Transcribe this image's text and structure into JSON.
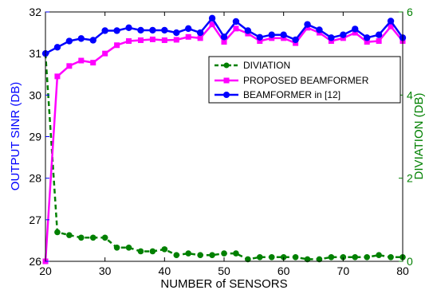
{
  "chart_data": {
    "type": "line",
    "title": "",
    "xlabel": "NUMBER of SENSORS",
    "ylabel": "OUTPUT SINR (DB)",
    "y2label": "DIVIATION (DB)",
    "xlim": [
      20,
      80
    ],
    "ylim": [
      26,
      32
    ],
    "y2lim": [
      0,
      6
    ],
    "x_ticks": [
      20,
      30,
      40,
      50,
      60,
      70,
      80
    ],
    "y_ticks": [
      26,
      27,
      28,
      29,
      30,
      31,
      32
    ],
    "y2_ticks": [
      0,
      2,
      4,
      6
    ],
    "grid": false,
    "legend_position": "right",
    "x": [
      20,
      22,
      24,
      26,
      28,
      30,
      32,
      34,
      36,
      38,
      40,
      42,
      44,
      46,
      48,
      50,
      52,
      54,
      56,
      58,
      60,
      62,
      64,
      66,
      68,
      70,
      72,
      74,
      76,
      78,
      80
    ],
    "series": [
      {
        "name": "DIVIATION",
        "axis": "right",
        "color": "#008000",
        "style": "dashed",
        "marker": "circle",
        "values": [
          5.0,
          0.7,
          0.63,
          0.57,
          0.57,
          0.57,
          0.33,
          0.33,
          0.24,
          0.24,
          0.29,
          0.15,
          0.19,
          0.15,
          0.15,
          0.19,
          0.19,
          0.05,
          0.1,
          0.1,
          0.1,
          0.1,
          0.05,
          0.05,
          0.1,
          0.1,
          0.1,
          0.1,
          0.15,
          0.1,
          0.1
        ]
      },
      {
        "name": "PROPOSED BEAMFORMER",
        "axis": "left",
        "color": "#ff00ff",
        "style": "solid",
        "marker": "square",
        "values": [
          26.0,
          30.45,
          30.7,
          30.83,
          30.78,
          31.0,
          31.2,
          31.3,
          31.32,
          31.34,
          31.32,
          31.33,
          31.4,
          31.37,
          31.7,
          31.28,
          31.6,
          31.48,
          31.3,
          31.37,
          31.37,
          31.25,
          31.62,
          31.5,
          31.3,
          31.37,
          31.5,
          31.28,
          31.3,
          31.65,
          31.3
        ]
      },
      {
        "name": "BEAMFORMER in [12]",
        "axis": "left",
        "color": "#0000ff",
        "style": "solid",
        "marker": "circle",
        "values": [
          31.0,
          31.15,
          31.3,
          31.36,
          31.32,
          31.55,
          31.55,
          31.62,
          31.56,
          31.56,
          31.56,
          31.5,
          31.6,
          31.5,
          31.85,
          31.4,
          31.77,
          31.55,
          31.39,
          31.45,
          31.45,
          31.33,
          31.7,
          31.57,
          31.38,
          31.45,
          31.59,
          31.38,
          31.45,
          31.78,
          31.38
        ]
      }
    ]
  }
}
